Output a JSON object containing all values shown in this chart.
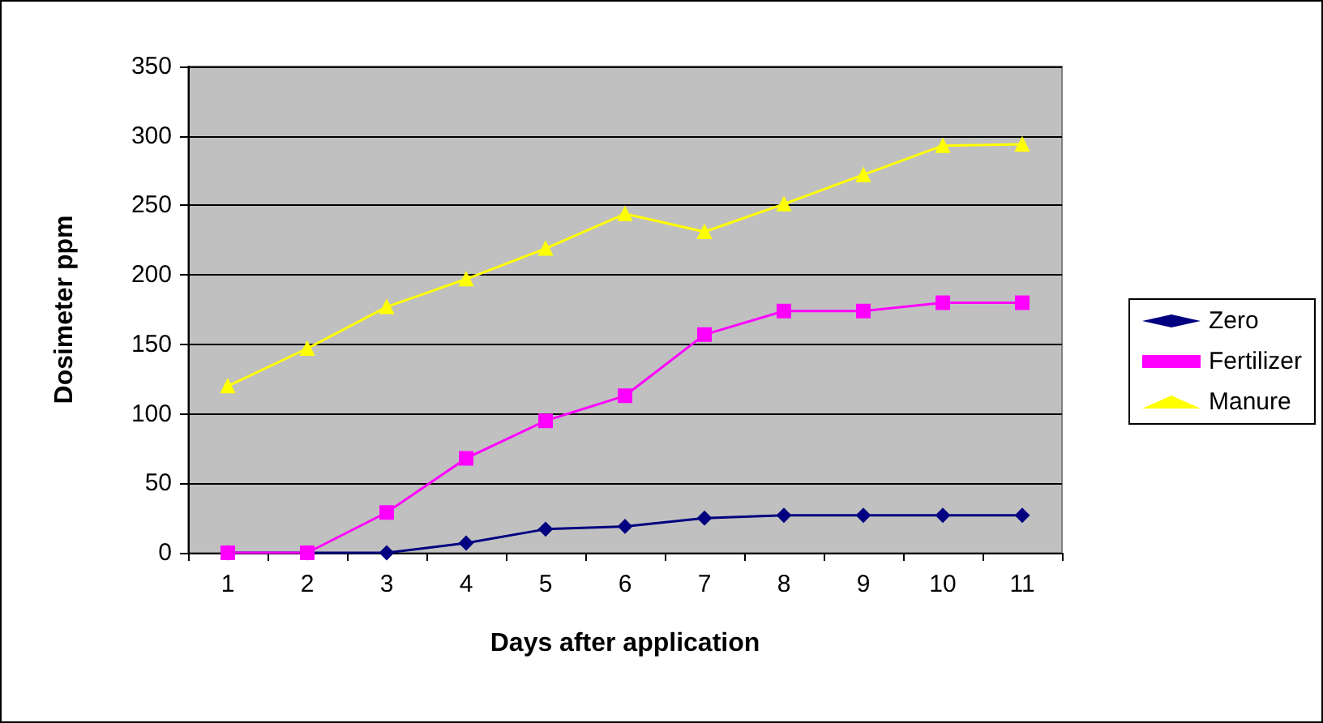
{
  "chart_data": {
    "type": "line",
    "xlabel": "Days after application",
    "ylabel": "Dosimeter ppm",
    "categories": [
      "1",
      "2",
      "3",
      "4",
      "5",
      "6",
      "7",
      "8",
      "9",
      "10",
      "11"
    ],
    "series": [
      {
        "name": "Zero",
        "color": "#000080",
        "marker": "diamond",
        "values": [
          0,
          0,
          0,
          7,
          17,
          19,
          25,
          27,
          27,
          27,
          27
        ]
      },
      {
        "name": "Fertilizer",
        "color": "#ff00ff",
        "marker": "square",
        "values": [
          0,
          0,
          29,
          68,
          95,
          113,
          157,
          174,
          174,
          180,
          180
        ]
      },
      {
        "name": "Manure",
        "color": "#ffff00",
        "marker": "triangle",
        "values": [
          120,
          147,
          177,
          197,
          219,
          244,
          231,
          251,
          272,
          293,
          294
        ]
      }
    ],
    "ylim": [
      0,
      350
    ],
    "yticks": [
      0,
      50,
      100,
      150,
      200,
      250,
      300,
      350
    ],
    "grid": "y",
    "legend": "right",
    "line_style": "solid"
  }
}
